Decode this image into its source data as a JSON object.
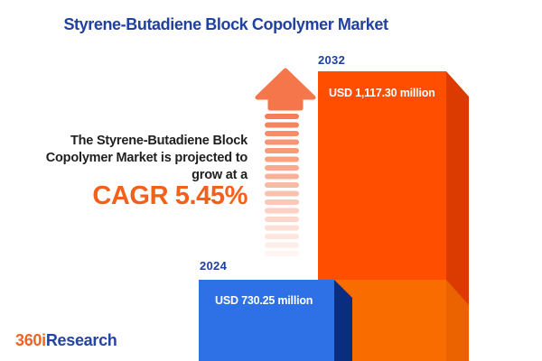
{
  "header": {
    "title": "Styrene-Butadiene Block Copolymer Market"
  },
  "annotation": {
    "lines": [
      "The Styrene-Butadiene Block",
      "Copolymer Market is projected to",
      "grow at a"
    ],
    "cagr": "CAGR 5.45%"
  },
  "bars": [
    {
      "year": "2024",
      "value_label": "USD 730.25 million"
    },
    {
      "year": "2032",
      "value_label": "USD 1,117.30 million"
    }
  ],
  "logo": {
    "part1": "360i",
    "part2": "Research"
  },
  "colors": {
    "title_blue": "#21419E",
    "year_blue": "#1E3F9E",
    "text_dark": "#1F1F1F",
    "cagr_orange": "#F3601A",
    "bar2024_face": "#2E70E6",
    "bar2024_side": "#0A2D80",
    "bar2032_face_top": "#FF4E00",
    "bar2032_face_bottom": "#F96C00",
    "bar2032_side_top": "#DB3B00",
    "bar2032_side_bottom": "#EA6300",
    "arrow": "#F5764B",
    "logo_orange": "#F26322",
    "logo_blue": "#2345A0",
    "value_text": "#FFFFFF"
  },
  "chart_data": {
    "type": "bar",
    "title": "Styrene-Butadiene Block Copolymer Market",
    "categories": [
      "2024",
      "2032"
    ],
    "values": [
      730.25,
      1117.3
    ],
    "unit": "USD million",
    "value_labels": [
      "USD 730.25 million",
      "USD 1,117.30 million"
    ],
    "cagr_percent": 5.45,
    "annotation": "The Styrene-Butadiene Block Copolymer Market is projected to grow at a CAGR 5.45%",
    "bar_colors": [
      "#2E70E6",
      "#FF4E00"
    ],
    "orientation": "vertical",
    "legend": "none",
    "grid": false,
    "axes": "none"
  }
}
